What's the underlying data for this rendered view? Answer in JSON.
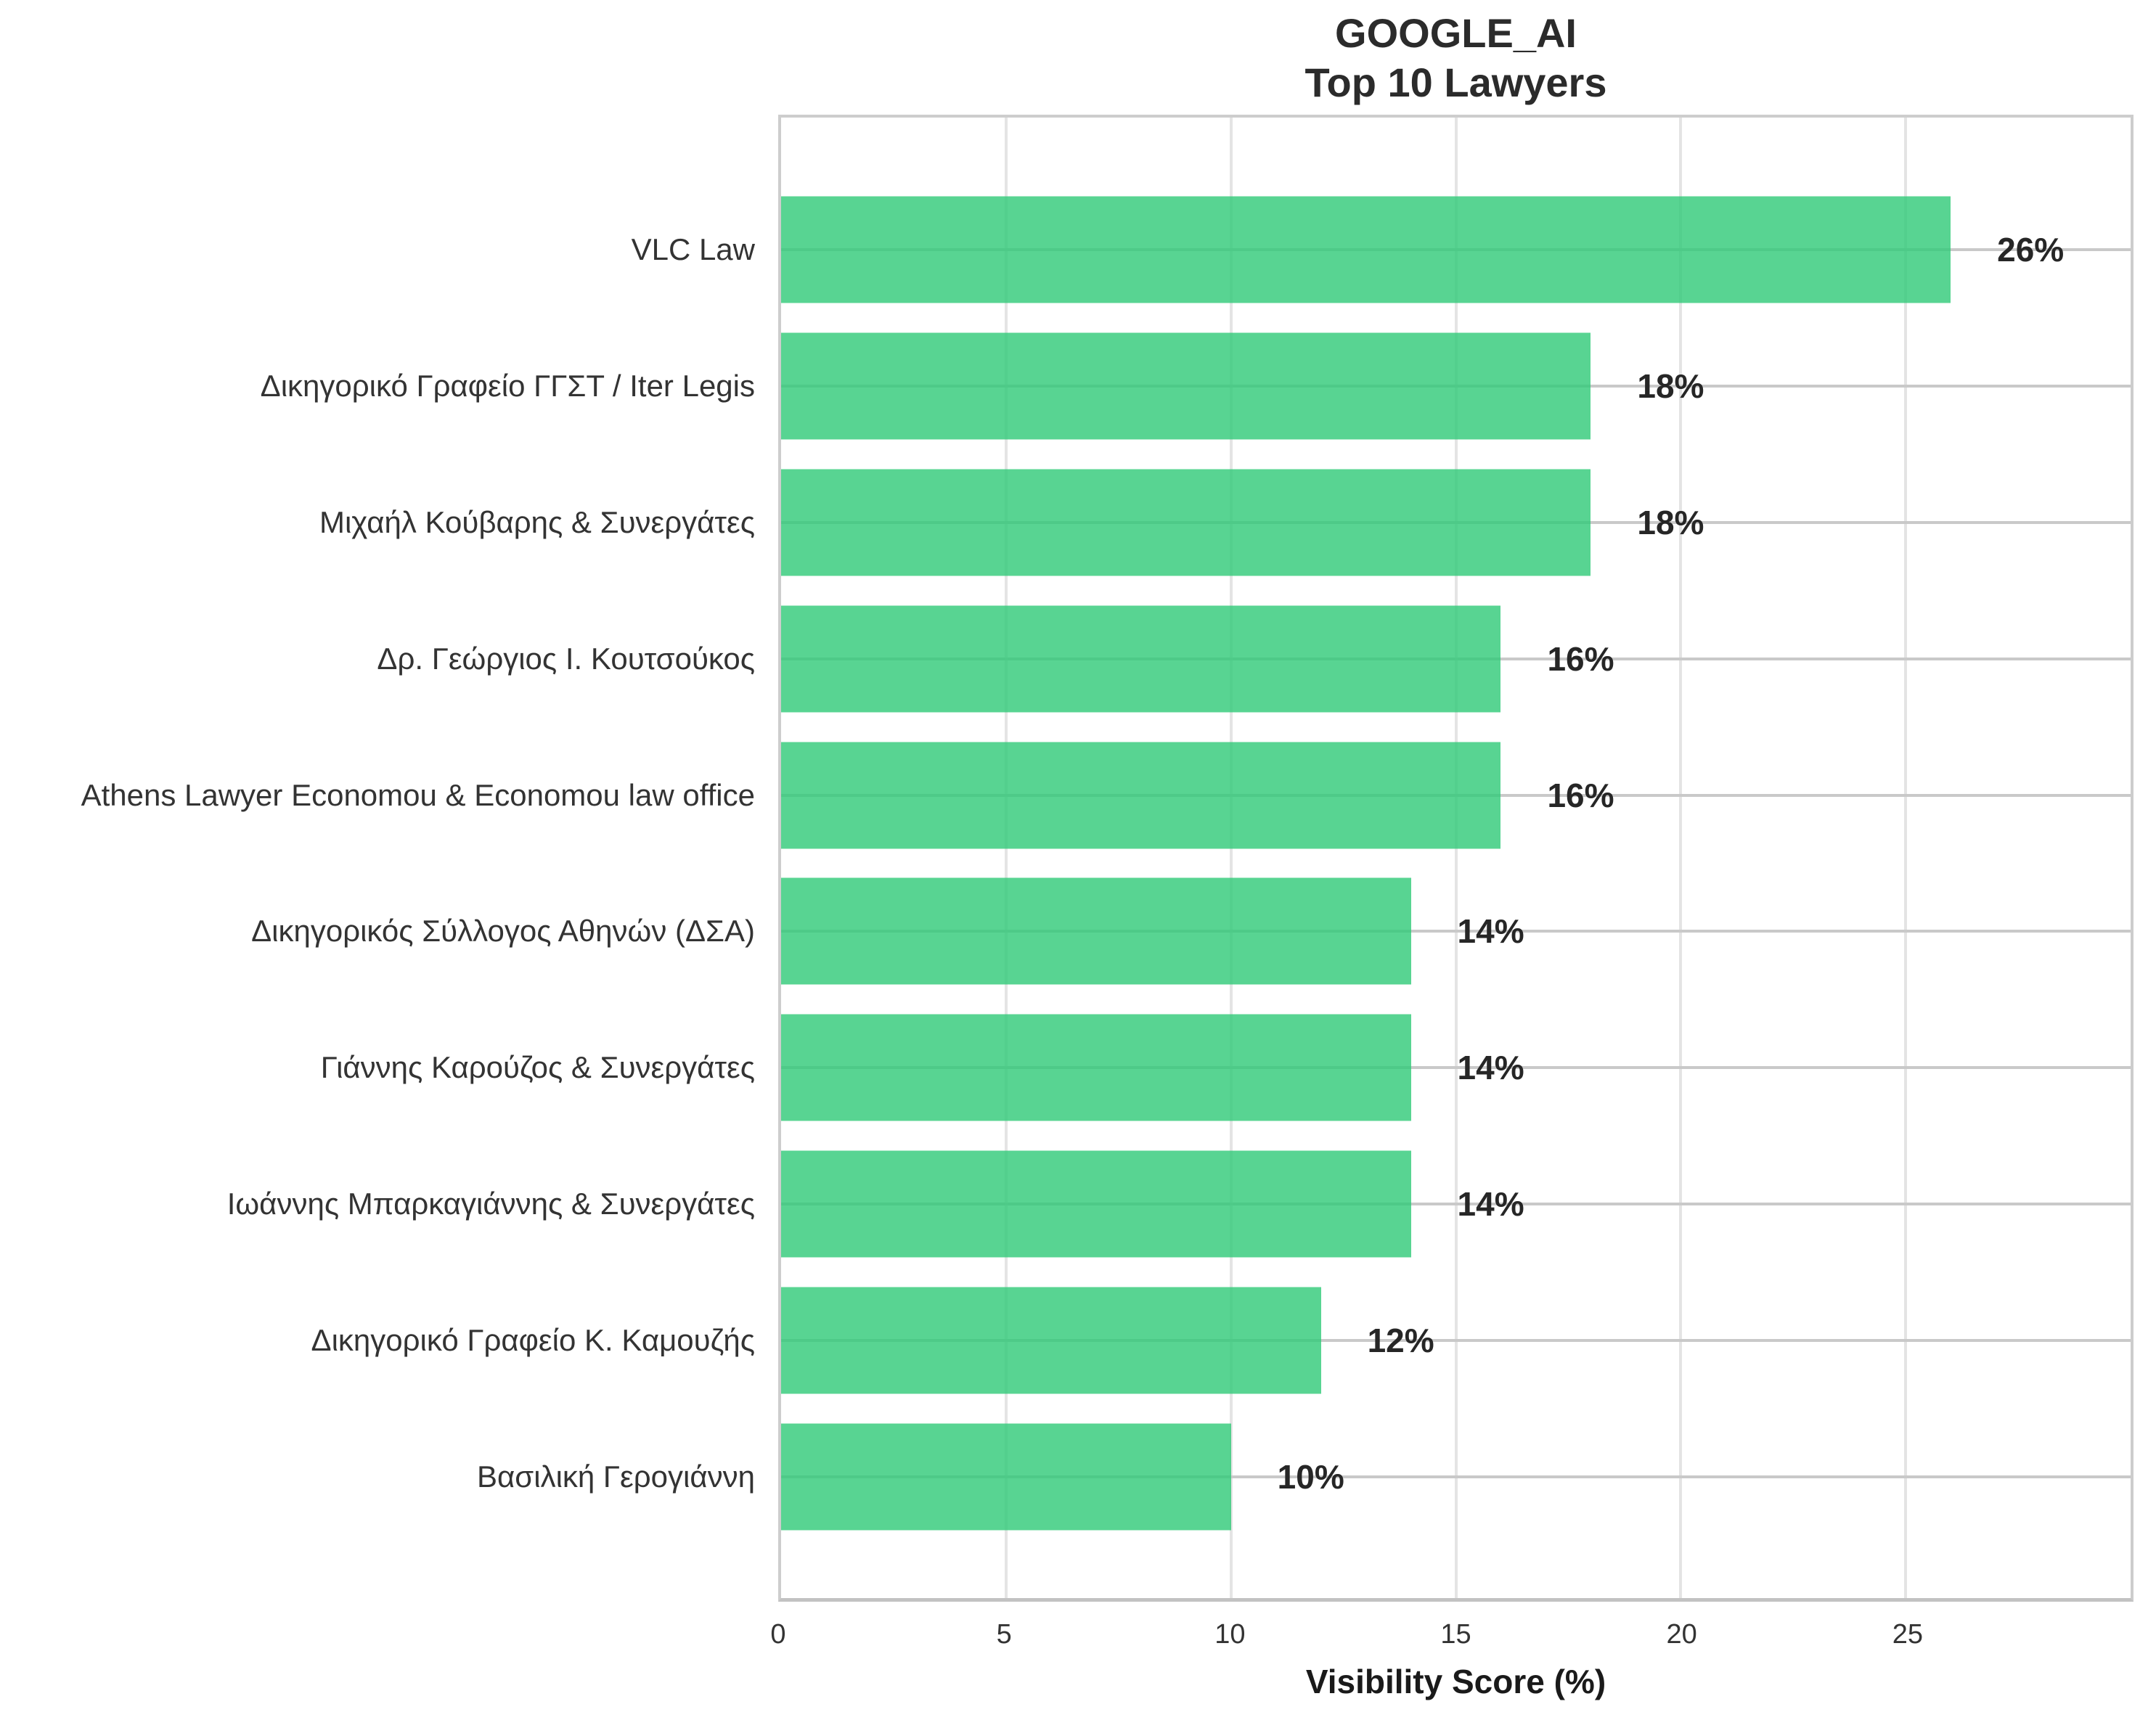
{
  "title": "GOOGLE_AI",
  "subtitle": "Top 10 Lawyers",
  "chart_data": {
    "type": "bar",
    "orientation": "horizontal",
    "title": "GOOGLE_AI",
    "subtitle": "Top 10 Lawyers",
    "xlabel": "Visibility Score (%)",
    "ylabel": "",
    "categories": [
      "VLC Law",
      "Δικηγορικό Γραφείο ΓΓΣΤ / Iter Legis",
      "Μιχαήλ Κούβαρης & Συνεργάτες",
      "Δρ. Γεώργιος Ι. Κουτσούκος",
      "Athens Lawyer Economou & Economou law office",
      "Δικηγορικός Σύλλογος Αθηνών (ΔΣΑ)",
      "Γιάννης Καρούζος & Συνεργάτες",
      "Ιωάννης Μπαρκαγιάννης & Συνεργάτες",
      "Δικηγορικό Γραφείο Κ. Καμουζής",
      "Βασιλική Γερογιάννη"
    ],
    "values": [
      26,
      18,
      18,
      16,
      16,
      14,
      14,
      14,
      12,
      10
    ],
    "value_labels": [
      "26%",
      "18%",
      "18%",
      "16%",
      "16%",
      "14%",
      "14%",
      "14%",
      "12%",
      "10%"
    ],
    "xlim": [
      0,
      30
    ],
    "xticks": [
      0,
      5,
      10,
      15,
      20,
      25
    ],
    "xtick_labels": [
      "0",
      "5",
      "10",
      "15",
      "20",
      "25"
    ],
    "grid": "on",
    "legend": "none",
    "bar_color": "#58d492",
    "bar_fill_rgba": "rgba(51,203,122,0.82)",
    "grid_color_horizontal": "#c9c9c9",
    "grid_color_vertical": "#e4e4e4",
    "spine_color": "#cdcdcd"
  }
}
